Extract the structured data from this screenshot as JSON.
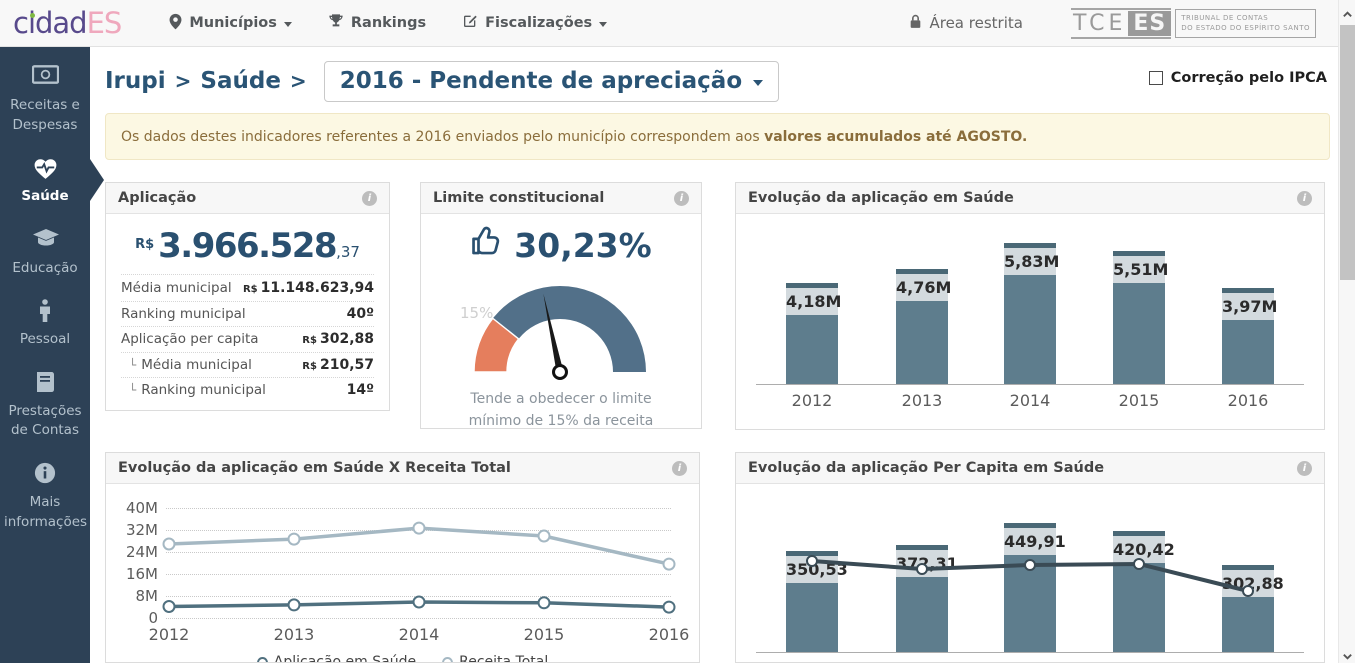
{
  "navbar": {
    "logo": {
      "part1": "cidad",
      "part2": "ES"
    },
    "menu": [
      {
        "label": "Municípios",
        "icon": "map-pin-icon",
        "has_caret": true
      },
      {
        "label": "Rankings",
        "icon": "trophy-icon",
        "has_caret": false
      },
      {
        "label": "Fiscalizações",
        "icon": "edit-icon",
        "has_caret": true
      }
    ],
    "area_restrita": "Área restrita",
    "tce_logo": {
      "tce": "TCE",
      "es": "ES",
      "line1": "TRIBUNAL DE CONTAS",
      "line2": "DO ESTADO DO ESPÍRITO SANTO"
    }
  },
  "sidebar": {
    "items": [
      {
        "label": "Receitas e Despesas",
        "icon": "banknote-icon",
        "active": false
      },
      {
        "label": "Saúde",
        "icon": "heart-pulse-icon",
        "active": true
      },
      {
        "label": "Educação",
        "icon": "graduation-cap-icon",
        "active": false
      },
      {
        "label": "Pessoal",
        "icon": "person-icon",
        "active": false
      },
      {
        "label": "Prestações de Contas",
        "icon": "book-icon",
        "active": false
      },
      {
        "label": "Mais informações",
        "icon": "info-icon",
        "active": false
      }
    ]
  },
  "header": {
    "breadcrumb": {
      "municipality": "Irupi",
      "sep1": ">",
      "section": "Saúde",
      "sep2": ">"
    },
    "year_selector": "2016 - Pendente de apreciação",
    "ipca_label": "Correção pelo IPCA",
    "ipca_checked": false
  },
  "alert": {
    "normal": "Os dados destes indicadores referentes a 2016 enviados pelo município correspondem aos ",
    "bold": "valores acumulados até AGOSTO."
  },
  "aplicacao_card": {
    "title": "Aplicação",
    "currency": "R$",
    "value": "3.966.528",
    "cents": ",37",
    "rows": [
      {
        "glyph": "",
        "label": "Média municipal",
        "prefix": "R$",
        "value": "11.148.623,94"
      },
      {
        "glyph": "",
        "label": "Ranking municipal",
        "prefix": "",
        "value": "40º"
      },
      {
        "glyph": "",
        "label": "Aplicação per capita",
        "prefix": "R$",
        "value": "302,88"
      },
      {
        "glyph": "└",
        "label": "Média municipal",
        "prefix": "R$",
        "value": "210,57"
      },
      {
        "glyph": "└",
        "label": "Ranking municipal",
        "prefix": "",
        "value": "14º"
      }
    ]
  },
  "limite_card": {
    "title": "Limite constitucional",
    "value": "30,23%",
    "gauge_min_label": "15%",
    "caption": "Tende a obedecer o limite mínimo de 15% da receita"
  },
  "chart_data": [
    {
      "id": "saude-bars",
      "type": "bar",
      "title": "Evolução da aplicação em Saúde",
      "categories": [
        "2012",
        "2013",
        "2014",
        "2015",
        "2016"
      ],
      "values": [
        4.18,
        4.76,
        5.83,
        5.51,
        3.97
      ],
      "labels": [
        "4,18M",
        "4,76M",
        "5,83M",
        "5,51M",
        "3,97M"
      ],
      "ylim": [
        0,
        6.5
      ],
      "grid": false
    },
    {
      "id": "saude-vs-receita",
      "type": "line",
      "title": "Evolução da aplicação em Saúde X Receita Total",
      "categories": [
        "2012",
        "2013",
        "2014",
        "2015",
        "2016"
      ],
      "series": [
        {
          "name": "Aplicação em Saúde",
          "values": [
            4.18,
            4.76,
            5.83,
            5.51,
            3.97
          ]
        },
        {
          "name": "Receita Total",
          "values": [
            26.9,
            28.7,
            32.7,
            29.8,
            19.6
          ]
        }
      ],
      "ytick_labels": [
        "0",
        "8M",
        "16M",
        "24M",
        "32M",
        "40M"
      ],
      "ylim": [
        0,
        40
      ],
      "grid": true,
      "legend_position": "bottom"
    },
    {
      "id": "percapita-bars",
      "type": "bar",
      "title": "Evolução da aplicação Per Capita em Saúde",
      "categories": [
        "2012",
        "2013",
        "2014",
        "2015",
        "2016"
      ],
      "values": [
        350.53,
        372.31,
        449.91,
        420.42,
        302.88
      ],
      "labels": [
        "350,53",
        "372,31",
        "449,91",
        "420,42",
        "302,88"
      ],
      "overlay_line": {
        "values": [
          317,
          290,
          303,
          307,
          211
        ]
      },
      "ylim": [
        0,
        520
      ],
      "grid": false
    }
  ],
  "colors": {
    "bar_fill": "#5e7d8d",
    "bar_cap": "#4a6876",
    "bar_label_bg": "#d3dade",
    "line_aplicacao": "#50707f",
    "line_receita": "#a5b8c3",
    "line_percapita": "#3a4b55",
    "gauge_main": "#527089",
    "gauge_low": "#e57e5d",
    "accent_heading": "#2a5475",
    "sidebar_bg": "#2d4156",
    "alert_text": "#8a6d3b"
  }
}
